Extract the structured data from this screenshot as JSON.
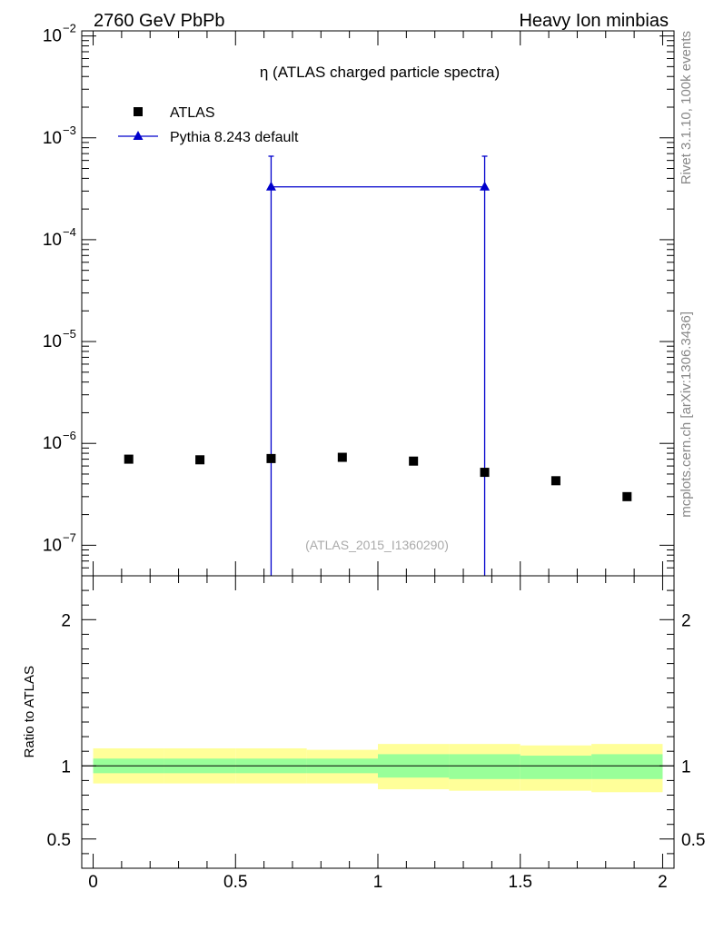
{
  "header": {
    "left": "2760 GeV PbPb",
    "right": "Heavy Ion minbias"
  },
  "side_labels": {
    "top": "Rivet 3.1.10,  100k events",
    "bottom": "mcplots.cern.ch [arXiv:1306.3436]"
  },
  "chart_data": [
    {
      "type": "scatter",
      "title": "η (ATLAS charged particle spectra)",
      "watermark": "(ATLAS_2015_I1360290)",
      "yscale": "log",
      "xlim": [
        -0.04,
        2.04
      ],
      "ylim_exp": [
        -7.3,
        -1.95
      ],
      "ytick_labels": [
        {
          "base": "10",
          "exp": "−2",
          "value_exp": -2
        },
        {
          "base": "10",
          "exp": "−3",
          "value_exp": -3
        },
        {
          "base": "10",
          "exp": "−4",
          "value_exp": -4
        },
        {
          "base": "10",
          "exp": "−5",
          "value_exp": -5
        },
        {
          "base": "10",
          "exp": "−6",
          "value_exp": -6
        },
        {
          "base": "10",
          "exp": "−7",
          "value_exp": -7
        }
      ],
      "legend_position": "top-left",
      "series": [
        {
          "name": "ATLAS",
          "marker": "square",
          "color": "#000000",
          "x": [
            0.125,
            0.375,
            0.625,
            0.875,
            1.125,
            1.375,
            1.625,
            1.875
          ],
          "y": [
            7e-07,
            6.9e-07,
            7.1e-07,
            7.3e-07,
            6.7e-07,
            5.2e-07,
            4.3e-07,
            3e-07
          ]
        },
        {
          "name": "Pythia 8.243 default",
          "marker": "triangle",
          "color": "#0000cc",
          "x": [
            0.625,
            1.375
          ],
          "y": [
            0.00033,
            0.00033
          ],
          "yerr_up": [
            0.00066,
            0.00066
          ],
          "yerr_down": [
            1e-09,
            1e-09
          ],
          "line_x": [
            0.625,
            1.375
          ]
        }
      ]
    },
    {
      "type": "area",
      "ylabel": "Ratio to ATLAS",
      "xlim": [
        -0.04,
        2.04
      ],
      "ylim": [
        0.3,
        2.3
      ],
      "ytick_labels": [
        "0.5",
        "1",
        "2"
      ],
      "ytick_values": [
        0.5,
        1,
        2
      ],
      "xtick_labels": [
        "0",
        "0.5",
        "1",
        "1.5",
        "2"
      ],
      "xtick_values": [
        0,
        0.5,
        1,
        1.5,
        2
      ],
      "reference_line": 1,
      "bins": [
        {
          "x0": 0.0,
          "x1": 0.25,
          "inner": [
            0.95,
            1.05
          ],
          "outer": [
            0.88,
            1.12
          ]
        },
        {
          "x0": 0.25,
          "x1": 0.5,
          "inner": [
            0.95,
            1.05
          ],
          "outer": [
            0.88,
            1.12
          ]
        },
        {
          "x0": 0.5,
          "x1": 0.75,
          "inner": [
            0.95,
            1.05
          ],
          "outer": [
            0.88,
            1.12
          ]
        },
        {
          "x0": 0.75,
          "x1": 1.0,
          "inner": [
            0.95,
            1.05
          ],
          "outer": [
            0.88,
            1.11
          ]
        },
        {
          "x0": 1.0,
          "x1": 1.25,
          "inner": [
            0.92,
            1.08
          ],
          "outer": [
            0.84,
            1.15
          ]
        },
        {
          "x0": 1.25,
          "x1": 1.5,
          "inner": [
            0.91,
            1.08
          ],
          "outer": [
            0.83,
            1.15
          ]
        },
        {
          "x0": 1.5,
          "x1": 1.75,
          "inner": [
            0.91,
            1.07
          ],
          "outer": [
            0.83,
            1.14
          ]
        },
        {
          "x0": 1.75,
          "x1": 2.0,
          "inner": [
            0.91,
            1.08
          ],
          "outer": [
            0.82,
            1.15
          ]
        }
      ],
      "band_colors": {
        "inner": "#99ff99",
        "outer": "#ffff99"
      }
    }
  ]
}
